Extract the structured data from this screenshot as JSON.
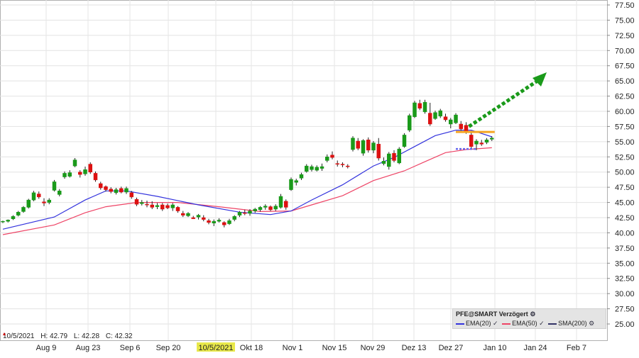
{
  "instrument": "PFE@SMART Verzögert",
  "legend": [
    {
      "name": "EMA(20)",
      "color": "#3333dd"
    },
    {
      "name": "EMA(50)",
      "color": "#ee4466"
    },
    {
      "name": "SMA(200)",
      "color": "#333366"
    }
  ],
  "ohlc": {
    "date": "10/5/2021",
    "h": "H: 42.79",
    "l": "L: 42.28",
    "c": "C: 42.32"
  },
  "colors": {
    "up": "#1a9a1a",
    "down": "#dd1111",
    "target_arrow": "#1a9a1a",
    "resistance": "#f5a623",
    "support": "#6666ee",
    "highlight": "#e8e84a"
  },
  "chart_data": {
    "type": "candlestick",
    "ylim": [
      25.0,
      78.5
    ],
    "y_ticks": [
      "25.00",
      "27.50",
      "30.00",
      "32.50",
      "35.00",
      "37.50",
      "40.00",
      "42.50",
      "45.00",
      "47.50",
      "50.00",
      "52.50",
      "55.00",
      "57.50",
      "60.00",
      "62.50",
      "65.00",
      "67.50",
      "70.00",
      "72.50",
      "75.00",
      "77.50"
    ],
    "x_ticks": [
      "Aug 9",
      "Aug 23",
      "Sep 6",
      "Sep 20",
      "10/5/2021",
      "Okt 18",
      "Nov 1",
      "Nov 15",
      "Nov 29",
      "Dez 13",
      "Dez 27",
      "Jan 10",
      "Jan 24",
      "Feb 7"
    ],
    "highlight_tick": "10/5/2021",
    "candles": [
      [
        41.8,
        42.0,
        41.6,
        41.9
      ],
      [
        41.9,
        42.2,
        41.7,
        42.1
      ],
      [
        42.3,
        42.9,
        42.1,
        42.7
      ],
      [
        42.9,
        43.6,
        42.7,
        43.4
      ],
      [
        43.5,
        44.4,
        43.3,
        44.2
      ],
      [
        44.2,
        45.6,
        44.0,
        45.4
      ],
      [
        45.4,
        46.9,
        45.2,
        46.6
      ],
      [
        46.4,
        46.8,
        45.6,
        45.9
      ],
      [
        45.1,
        45.7,
        44.4,
        44.9
      ],
      [
        45.0,
        45.7,
        44.7,
        45.4
      ],
      [
        47.0,
        48.7,
        46.8,
        48.4
      ],
      [
        46.3,
        47.2,
        46.0,
        46.9
      ],
      [
        49.2,
        50.1,
        48.9,
        49.8
      ],
      [
        49.3,
        50.3,
        49.1,
        49.9
      ],
      [
        51.0,
        52.3,
        50.8,
        52.0
      ],
      [
        50.0,
        50.3,
        49.1,
        49.6
      ],
      [
        49.7,
        50.9,
        49.4,
        50.4
      ],
      [
        51.3,
        51.6,
        49.7,
        50.0
      ],
      [
        49.8,
        50.1,
        48.4,
        48.7
      ],
      [
        48.1,
        48.4,
        47.1,
        47.4
      ],
      [
        47.6,
        47.8,
        46.8,
        47.1
      ],
      [
        47.2,
        47.5,
        46.5,
        46.8
      ],
      [
        46.6,
        47.4,
        46.3,
        47.1
      ],
      [
        47.3,
        47.6,
        46.5,
        46.7
      ],
      [
        46.7,
        47.6,
        46.4,
        47.3
      ],
      [
        46.6,
        46.9,
        45.6,
        45.9
      ],
      [
        45.5,
        45.8,
        44.4,
        44.7
      ],
      [
        44.8,
        45.4,
        44.5,
        45.0
      ],
      [
        44.7,
        45.3,
        44.2,
        44.6
      ],
      [
        44.6,
        45.2,
        43.9,
        44.2
      ],
      [
        44.3,
        44.9,
        43.9,
        44.5
      ],
      [
        44.6,
        44.9,
        43.6,
        43.9
      ],
      [
        44.5,
        44.8,
        43.9,
        44.1
      ],
      [
        44.1,
        44.9,
        43.6,
        44.6
      ],
      [
        44.2,
        44.4,
        43.3,
        43.6
      ],
      [
        43.2,
        43.6,
        42.6,
        42.9
      ],
      [
        42.8,
        43.4,
        42.6,
        43.2
      ],
      [
        42.5,
        42.79,
        42.28,
        42.32
      ],
      [
        42.6,
        43.1,
        42.2,
        42.9
      ],
      [
        42.5,
        42.9,
        41.9,
        42.2
      ],
      [
        42.0,
        42.3,
        41.4,
        41.7
      ],
      [
        41.6,
        42.2,
        41.1,
        41.9
      ],
      [
        41.9,
        42.4,
        41.7,
        42.1
      ],
      [
        41.7,
        41.9,
        40.9,
        41.3
      ],
      [
        41.5,
        42.3,
        41.3,
        42.0
      ],
      [
        42.2,
        42.9,
        41.9,
        42.7
      ],
      [
        42.9,
        43.6,
        42.6,
        43.4
      ],
      [
        43.3,
        43.8,
        42.9,
        43.2
      ],
      [
        43.2,
        43.9,
        42.8,
        43.6
      ],
      [
        43.6,
        44.1,
        43.3,
        43.9
      ],
      [
        43.8,
        44.4,
        43.5,
        44.2
      ],
      [
        44.2,
        44.7,
        43.8,
        44.4
      ],
      [
        44.3,
        44.5,
        43.6,
        43.8
      ],
      [
        43.9,
        44.7,
        43.6,
        44.4
      ],
      [
        44.2,
        46.4,
        44.0,
        46.0
      ],
      [
        45.2,
        45.5,
        43.8,
        44.2
      ],
      [
        47.1,
        49.1,
        46.9,
        48.8
      ],
      [
        48.3,
        48.9,
        47.8,
        48.6
      ],
      [
        49.0,
        49.9,
        48.7,
        49.6
      ],
      [
        50.1,
        51.3,
        49.9,
        51.0
      ],
      [
        50.4,
        51.2,
        50.1,
        50.9
      ],
      [
        50.3,
        51.1,
        50.1,
        50.8
      ],
      [
        50.6,
        51.4,
        50.2,
        50.9
      ],
      [
        51.9,
        52.9,
        51.6,
        52.5
      ],
      [
        52.8,
        53.4,
        52.1,
        52.4
      ],
      [
        51.4,
        51.9,
        50.9,
        51.3
      ],
      [
        51.3,
        51.6,
        50.8,
        51.2
      ],
      [
        51.0,
        51.3,
        50.6,
        50.9
      ],
      [
        53.7,
        55.9,
        53.4,
        55.6
      ],
      [
        55.1,
        55.6,
        53.6,
        53.9
      ],
      [
        53.1,
        55.4,
        52.7,
        55.2
      ],
      [
        55.3,
        55.7,
        53.2,
        53.6
      ],
      [
        53.6,
        55.1,
        53.1,
        54.8
      ],
      [
        54.6,
        55.6,
        51.9,
        52.3
      ],
      [
        51.4,
        52.4,
        51.1,
        51.8
      ],
      [
        50.9,
        53.3,
        50.4,
        53.0
      ],
      [
        53.1,
        53.6,
        51.6,
        51.9
      ],
      [
        51.5,
        54.1,
        51.3,
        53.8
      ],
      [
        54.2,
        56.4,
        54.0,
        56.1
      ],
      [
        56.9,
        59.6,
        56.6,
        59.3
      ],
      [
        59.1,
        61.7,
        58.9,
        61.4
      ],
      [
        61.3,
        61.9,
        60.2,
        60.5
      ],
      [
        59.9,
        61.9,
        59.6,
        61.5
      ],
      [
        59.7,
        61.4,
        57.6,
        57.9
      ],
      [
        58.8,
        60.1,
        58.6,
        59.8
      ],
      [
        59.2,
        60.4,
        58.9,
        60.1
      ],
      [
        59.1,
        59.6,
        58.3,
        58.6
      ],
      [
        57.9,
        58.9,
        57.2,
        58.6
      ],
      [
        58.1,
        59.7,
        57.9,
        59.4
      ],
      [
        57.9,
        58.4,
        56.8,
        57.1
      ],
      [
        57.7,
        58.2,
        56.3,
        56.6
      ],
      [
        56.1,
        56.8,
        53.9,
        54.2
      ],
      [
        54.6,
        55.4,
        53.6,
        55.1
      ],
      [
        54.8,
        55.3,
        54.3,
        54.6
      ],
      [
        54.9,
        55.6,
        54.6,
        55.3
      ],
      [
        55.4,
        55.9,
        55.1,
        55.6
      ]
    ],
    "ema20": [
      [
        0,
        40.6
      ],
      [
        10,
        42.6
      ],
      [
        16,
        45.4
      ],
      [
        20,
        46.9
      ],
      [
        24,
        46.9
      ],
      [
        30,
        46.0
      ],
      [
        38,
        44.6
      ],
      [
        46,
        43.4
      ],
      [
        52,
        43.0
      ],
      [
        56,
        43.6
      ],
      [
        60,
        45.4
      ],
      [
        66,
        47.9
      ],
      [
        72,
        51.0
      ],
      [
        76,
        52.4
      ],
      [
        80,
        54.2
      ],
      [
        84,
        56.0
      ],
      [
        88,
        56.9
      ],
      [
        91,
        56.9
      ],
      [
        95,
        55.8
      ]
    ],
    "ema50": [
      [
        0,
        39.7
      ],
      [
        10,
        41.3
      ],
      [
        16,
        43.3
      ],
      [
        20,
        44.3
      ],
      [
        26,
        45.0
      ],
      [
        34,
        45.0
      ],
      [
        42,
        44.3
      ],
      [
        50,
        43.5
      ],
      [
        56,
        43.6
      ],
      [
        60,
        44.6
      ],
      [
        66,
        46.1
      ],
      [
        72,
        48.6
      ],
      [
        78,
        50.2
      ],
      [
        82,
        51.7
      ],
      [
        86,
        53.2
      ],
      [
        90,
        53.7
      ],
      [
        95,
        54.0
      ]
    ],
    "annotations": {
      "resistance_level": 56.6,
      "resistance_from": 88,
      "resistance_to": 95,
      "support_level": 53.8,
      "support_from": 88,
      "support_to": 92,
      "target_from": [
        90,
        57.5
      ],
      "target_to": [
        103,
        66.3
      ]
    }
  }
}
